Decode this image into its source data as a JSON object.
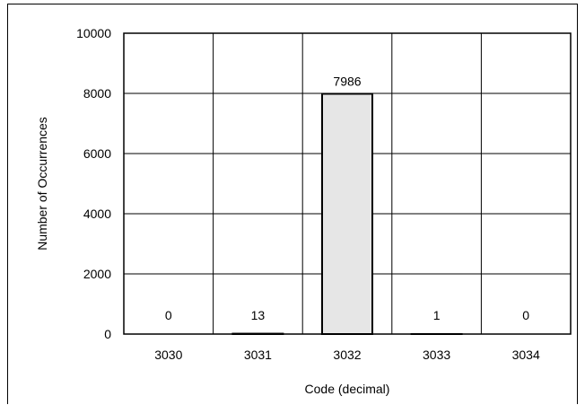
{
  "chart_data": {
    "type": "bar",
    "title": "",
    "xlabel": "Code (decimal)",
    "ylabel": "Number of Occurrences",
    "categories": [
      "3030",
      "3031",
      "3032",
      "3033",
      "3034"
    ],
    "values": [
      0,
      13,
      7986,
      1,
      0
    ],
    "data_labels": [
      "0",
      "13",
      "7986",
      "1",
      "0"
    ],
    "ylim": [
      0,
      10000
    ],
    "yticks": [
      "0",
      "2000",
      "4000",
      "6000",
      "8000",
      "10000"
    ],
    "grid": true,
    "legend": "none",
    "colors": {
      "bar_fill": "#e6e6e6",
      "bar_stroke": "#000000",
      "grid": "#000000"
    }
  }
}
